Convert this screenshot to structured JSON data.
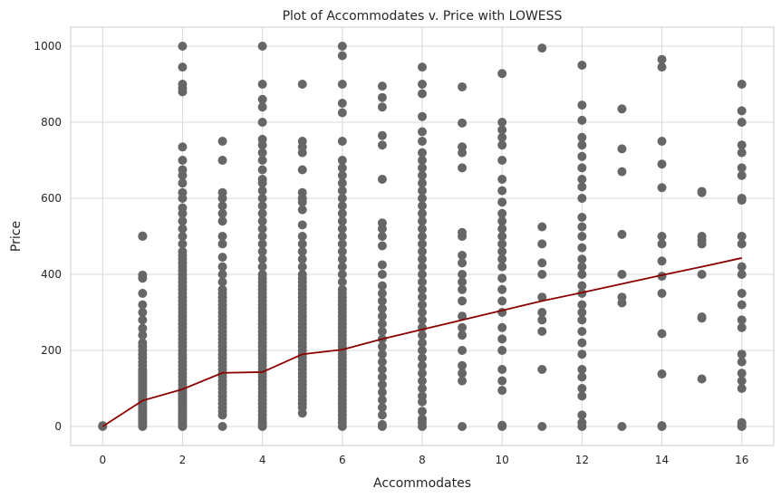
{
  "chart_data": {
    "type": "scatter",
    "title": "Plot of Accommodates v. Price with LOWESS",
    "xlabel": "Accommodates",
    "ylabel": "Price",
    "xlim": [
      -0.8,
      16.8
    ],
    "ylim": [
      -50,
      1050
    ],
    "xticks": [
      0,
      2,
      4,
      6,
      8,
      10,
      12,
      14,
      16
    ],
    "yticks": [
      0,
      200,
      400,
      600,
      800,
      1000
    ],
    "grid": true,
    "colors": {
      "points": "#666666",
      "lowess": "#8b0000"
    },
    "series": [
      {
        "type": "scatter",
        "points_by_x": [
          {
            "x": 0,
            "y": [
              0,
              2
            ]
          },
          {
            "x": 1,
            "y": [
              0,
              5,
              10,
              15,
              20,
              25,
              30,
              35,
              40,
              45,
              50,
              55,
              60,
              65,
              70,
              75,
              80,
              85,
              90,
              95,
              100,
              105,
              110,
              115,
              120,
              125,
              130,
              135,
              140,
              145,
              150,
              160,
              170,
              180,
              190,
              200,
              210,
              220,
              240,
              258,
              280,
              300,
              320,
              350,
              390,
              398,
              500,
              501
            ]
          },
          {
            "x": 2,
            "y": [
              0,
              5,
              10,
              15,
              20,
              25,
              30,
              35,
              40,
              45,
              50,
              55,
              60,
              65,
              70,
              75,
              80,
              85,
              90,
              95,
              100,
              110,
              120,
              130,
              140,
              150,
              160,
              170,
              180,
              190,
              200,
              210,
              220,
              230,
              240,
              250,
              260,
              270,
              280,
              290,
              300,
              310,
              320,
              330,
              340,
              350,
              360,
              370,
              380,
              390,
              400,
              410,
              420,
              430,
              440,
              450,
              460,
              480,
              500,
              520,
              540,
              560,
              575,
              600,
              615,
              640,
              660,
              675,
              700,
              735,
              880,
              890,
              900,
              945,
              1000
            ]
          },
          {
            "x": 3,
            "y": [
              0,
              30,
              40,
              50,
              60,
              70,
              80,
              90,
              100,
              110,
              120,
              130,
              140,
              150,
              160,
              170,
              180,
              190,
              200,
              210,
              220,
              230,
              240,
              250,
              260,
              270,
              280,
              290,
              300,
              310,
              320,
              330,
              340,
              350,
              360,
              380,
              400,
              420,
              445,
              480,
              500,
              540,
              560,
              580,
              600,
              615,
              700,
              750
            ]
          },
          {
            "x": 4,
            "y": [
              0,
              5,
              10,
              20,
              30,
              40,
              50,
              60,
              70,
              80,
              90,
              100,
              110,
              120,
              130,
              140,
              150,
              160,
              170,
              180,
              190,
              200,
              210,
              220,
              230,
              240,
              250,
              260,
              270,
              280,
              290,
              300,
              310,
              320,
              330,
              340,
              350,
              360,
              370,
              380,
              390,
              400,
              420,
              440,
              460,
              480,
              500,
              520,
              540,
              560,
              580,
              600,
              620,
              640,
              650,
              675,
              700,
              720,
              740,
              755,
              800,
              840,
              860,
              900,
              1000
            ]
          },
          {
            "x": 5,
            "y": [
              35,
              50,
              60,
              70,
              80,
              90,
              100,
              110,
              120,
              130,
              140,
              150,
              160,
              170,
              180,
              190,
              200,
              210,
              220,
              230,
              240,
              250,
              260,
              270,
              280,
              290,
              300,
              310,
              320,
              330,
              340,
              350,
              360,
              370,
              380,
              390,
              400,
              420,
              440,
              460,
              480,
              500,
              530,
              570,
              590,
              600,
              615,
              675,
              720,
              735,
              750,
              900
            ]
          },
          {
            "x": 6,
            "y": [
              0,
              10,
              20,
              30,
              40,
              50,
              60,
              70,
              80,
              90,
              100,
              110,
              120,
              130,
              140,
              150,
              160,
              170,
              180,
              190,
              200,
              210,
              220,
              230,
              240,
              250,
              260,
              270,
              280,
              290,
              300,
              310,
              320,
              330,
              340,
              350,
              360,
              380,
              400,
              420,
              440,
              460,
              480,
              500,
              520,
              540,
              560,
              580,
              600,
              620,
              640,
              660,
              680,
              700,
              750,
              825,
              850,
              900,
              975,
              1000
            ]
          },
          {
            "x": 7,
            "y": [
              0,
              5,
              30,
              50,
              70,
              90,
              110,
              130,
              150,
              170,
              190,
              210,
              230,
              250,
              270,
              290,
              310,
              330,
              350,
              370,
              400,
              425,
              475,
              500,
              520,
              535,
              650,
              740,
              765,
              840,
              865,
              895
            ]
          },
          {
            "x": 8,
            "y": [
              0,
              10,
              20,
              40,
              65,
              80,
              100,
              120,
              140,
              160,
              180,
              200,
              220,
              240,
              260,
              280,
              300,
              320,
              340,
              360,
              380,
              400,
              420,
              440,
              460,
              480,
              500,
              520,
              540,
              560,
              580,
              600,
              620,
              640,
              660,
              680,
              700,
              720,
              750,
              775,
              815,
              875,
              900,
              945
            ]
          },
          {
            "x": 9,
            "y": [
              0,
              120,
              140,
              160,
              200,
              240,
              260,
              290,
              330,
              360,
              380,
              400,
              430,
              450,
              500,
              510,
              680,
              720,
              735,
              798,
              893
            ]
          },
          {
            "x": 10,
            "y": [
              0,
              3,
              95,
              120,
              150,
              200,
              230,
              260,
              300,
              330,
              360,
              390,
              420,
              440,
              460,
              480,
              500,
              520,
              540,
              560,
              590,
              620,
              650,
              700,
              740,
              760,
              780,
              800,
              928
            ]
          },
          {
            "x": 11,
            "y": [
              0,
              150,
              250,
              280,
              300,
              340,
              400,
              430,
              480,
              525,
              995
            ]
          },
          {
            "x": 12,
            "y": [
              0,
              10,
              30,
              80,
              100,
              130,
              150,
              190,
              220,
              250,
              280,
              300,
              320,
              350,
              370,
              400,
              420,
              440,
              470,
              500,
              525,
              550,
              600,
              630,
              650,
              680,
              710,
              740,
              760,
              805,
              845,
              950
            ]
          },
          {
            "x": 13,
            "y": [
              0,
              325,
              340,
              400,
              505,
              670,
              730,
              835
            ]
          },
          {
            "x": 14,
            "y": [
              0,
              2,
              138,
              244,
              350,
              395,
              435,
              480,
              500,
              628,
              690,
              750,
              945,
              965
            ]
          },
          {
            "x": 15,
            "y": [
              125,
              285,
              288,
              400,
              480,
              490,
              500,
              615,
              618
            ]
          },
          {
            "x": 16,
            "y": [
              0,
              5,
              10,
              100,
              120,
              140,
              170,
              190,
              260,
              280,
              320,
              350,
              400,
              420,
              480,
              500,
              595,
              600,
              660,
              680,
              720,
              740,
              800,
              830,
              900
            ]
          }
        ]
      },
      {
        "type": "line",
        "x": [
          0,
          1,
          2,
          3,
          4,
          5,
          6,
          7,
          8,
          9,
          10,
          11,
          12,
          13,
          14,
          15,
          16
        ],
        "y": [
          0,
          68,
          98,
          141,
          143,
          190,
          202,
          230,
          255,
          280,
          305,
          330,
          352,
          375,
          398,
          420,
          443
        ]
      }
    ]
  }
}
